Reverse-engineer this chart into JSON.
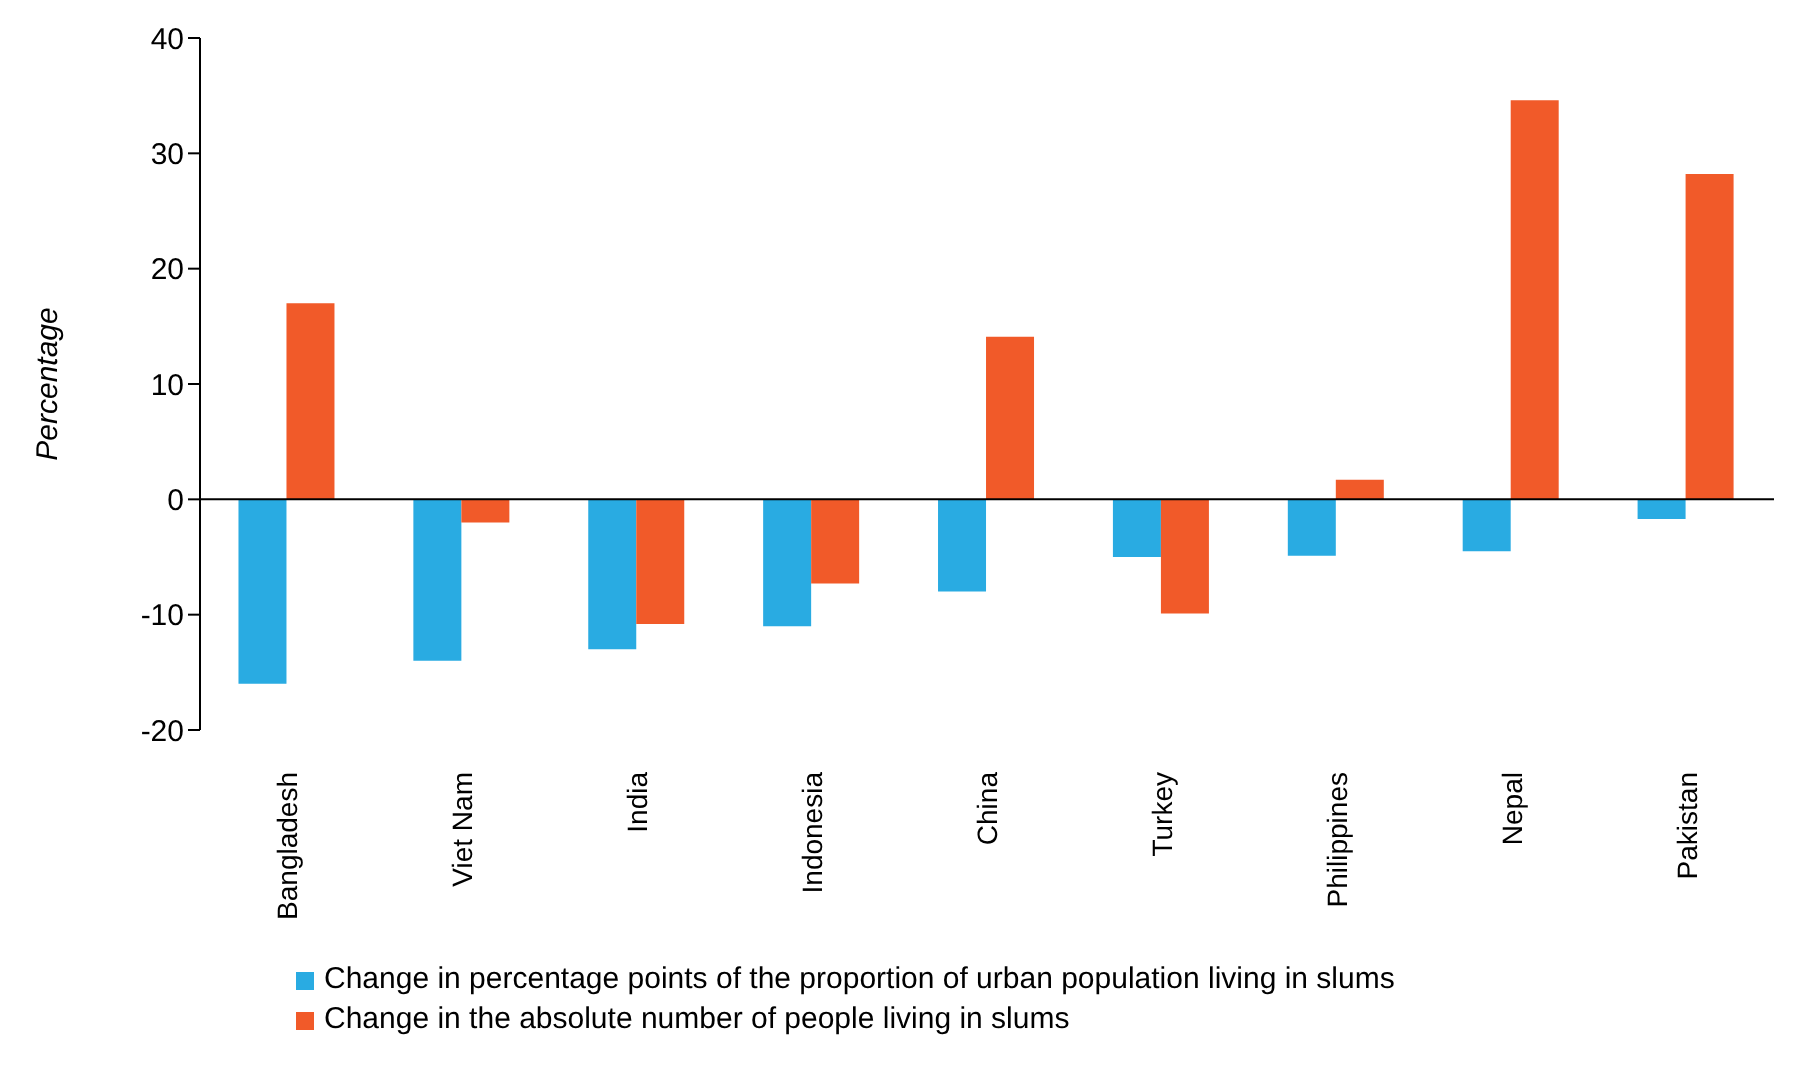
{
  "chart_data": {
    "type": "bar",
    "ylabel": "Percentage",
    "categories": [
      "Bangladesh",
      "Viet Nam",
      "India",
      "Indonesia",
      "China",
      "Turkey",
      "Philippines",
      "Nepal",
      "Pakistan"
    ],
    "series": [
      {
        "name": "Change in percentage points of the proportion of urban population living in slums",
        "color": "#29abe2",
        "values": [
          -16,
          -14,
          -13,
          -11,
          -8,
          -5,
          -4.9,
          -4.5,
          -1.7
        ]
      },
      {
        "name": "Change in the absolute number of people living in slums",
        "color": "#f15a29",
        "values": [
          17,
          -2,
          -10.8,
          -7.3,
          14.1,
          -9.9,
          1.7,
          34.6,
          28.2
        ]
      }
    ],
    "ylim": [
      -20,
      40
    ],
    "yticks": [
      -20,
      -10,
      0,
      10,
      20,
      30,
      40
    ],
    "legend": "bottom"
  }
}
